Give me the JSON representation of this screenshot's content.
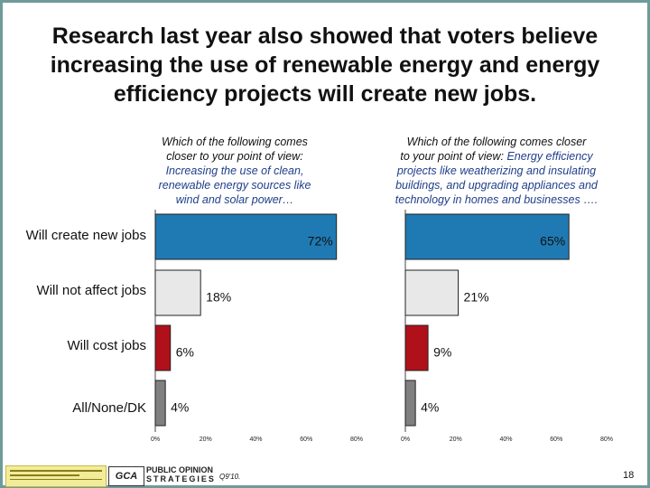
{
  "title_lines": [
    "Research last year also showed that voters believe",
    "increasing the use of renewable energy and energy",
    "efficiency projects will create new jobs."
  ],
  "left_question": {
    "prefix_lines": [
      "Which of the following comes",
      "closer to your point of view:"
    ],
    "highlight_lines": [
      "Increasing the use of clean,",
      "renewable energy sources like",
      "wind and solar power…"
    ]
  },
  "right_question": {
    "line1": "Which of the following comes closer",
    "line2_prefix": "to your point of view: ",
    "line2_highlight": "Energy efficiency",
    "highlight_lines": [
      "projects like weatherizing and insulating",
      "buildings, and upgrading appliances and",
      "technology in homes and businesses …."
    ]
  },
  "chart_data": {
    "type": "bar",
    "orientation": "horizontal",
    "categories": [
      "Will create new jobs",
      "Will not affect jobs",
      "Will cost jobs",
      "All/None/DK"
    ],
    "panels": [
      {
        "values": [
          72,
          18,
          6,
          4
        ],
        "labels": [
          "72%",
          "18%",
          "6%",
          "4%"
        ]
      },
      {
        "values": [
          65,
          21,
          9,
          4
        ],
        "labels": [
          "65%",
          "21%",
          "9%",
          "4%"
        ]
      }
    ],
    "bar_colors": [
      "#1f7ab3",
      "#e8e8e8",
      "#b0101a",
      "#808080"
    ],
    "xlim": [
      0,
      80
    ],
    "ticks": [
      0,
      20,
      40,
      60,
      80
    ],
    "tick_labels": [
      "0%",
      "20%",
      "40%",
      "60%",
      "80%"
    ]
  },
  "footer": {
    "org_top": "PUBLIC OPINION",
    "org_bottom": "STRATEGIES",
    "org_abbrev": "GCA",
    "question_number": "Q9'10.",
    "page_number": "18"
  },
  "colors": {
    "border": "#6f9a9a",
    "highlight_text": "#1f3e8a",
    "bar_outline": "#222222"
  }
}
